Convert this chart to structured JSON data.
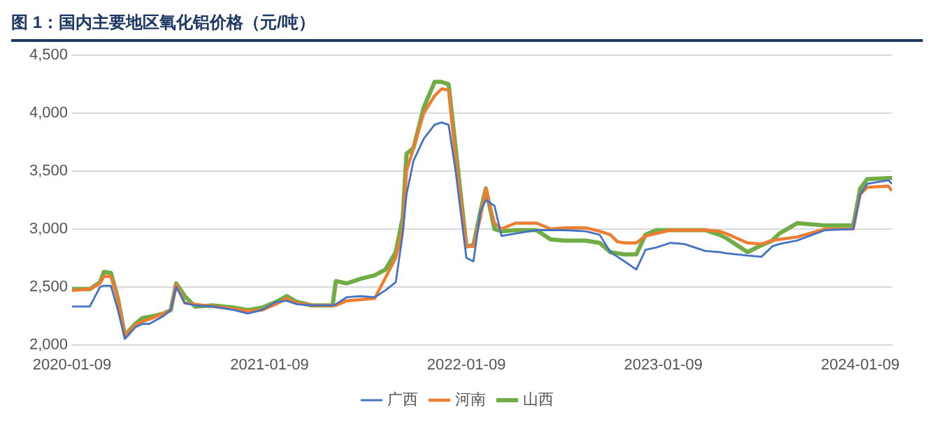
{
  "chart_data": {
    "type": "line",
    "title": "图 1：国内主要地区氧化铝价格（元/吨）",
    "x": [
      "2020-01-09",
      "2020-02-11",
      "2020-03-01",
      "2020-03-08",
      "2020-03-21",
      "2020-04-03",
      "2020-04-16",
      "2020-05-05",
      "2020-05-18",
      "2020-05-31",
      "2020-06-27",
      "2020-07-10",
      "2020-07-20",
      "2020-08-05",
      "2020-08-24",
      "2020-09-26",
      "2020-11-04",
      "2020-11-30",
      "2020-12-26",
      "2021-01-21",
      "2021-02-10",
      "2021-03-01",
      "2021-03-28",
      "2021-05-06",
      "2021-05-12",
      "2021-06-01",
      "2021-06-27",
      "2021-07-23",
      "2021-08-12",
      "2021-08-31",
      "2021-09-13",
      "2021-09-20",
      "2021-10-03",
      "2021-10-22",
      "2021-11-11",
      "2021-11-24",
      "2021-12-07",
      "2021-12-20",
      "2022-01-09",
      "2022-01-22",
      "2022-02-04",
      "2022-02-14",
      "2022-03-02",
      "2022-03-15",
      "2022-04-10",
      "2022-05-19",
      "2022-06-14",
      "2022-07-10",
      "2022-08-18",
      "2022-09-13",
      "2022-10-03",
      "2022-10-16",
      "2022-10-29",
      "2022-11-20",
      "2022-12-07",
      "2022-12-27",
      "2023-01-22",
      "2023-02-17",
      "2023-03-28",
      "2023-04-23",
      "2023-05-06",
      "2023-06-14",
      "2023-07-10",
      "2023-07-30",
      "2023-08-12",
      "2023-09-14",
      "2023-11-05",
      "2023-12-27",
      "2024-01-09",
      "2024-01-22",
      "2024-03-01",
      "2024-03-08"
    ],
    "series": [
      {
        "name": "广西",
        "color": "#4472c4",
        "values": [
          2330,
          2330,
          2500,
          2510,
          2510,
          2300,
          2050,
          2150,
          2180,
          2180,
          2250,
          2300,
          2500,
          2360,
          2340,
          2330,
          2300,
          2270,
          2300,
          2370,
          2380,
          2350,
          2340,
          2340,
          2350,
          2410,
          2420,
          2410,
          2470,
          2540,
          2960,
          3300,
          3590,
          3780,
          3900,
          3920,
          3900,
          3500,
          2750,
          2720,
          3150,
          3250,
          3200,
          2940,
          2960,
          2990,
          2990,
          2990,
          2980,
          2950,
          2800,
          2760,
          2720,
          2650,
          2820,
          2840,
          2880,
          2870,
          2810,
          2800,
          2790,
          2770,
          2760,
          2850,
          2870,
          2900,
          2990,
          3000,
          3300,
          3390,
          3420,
          3390
        ]
      },
      {
        "name": "河南",
        "color": "#ed7d31",
        "values": [
          2470,
          2480,
          2530,
          2590,
          2590,
          2400,
          2080,
          2170,
          2200,
          2220,
          2270,
          2300,
          2520,
          2360,
          2350,
          2330,
          2310,
          2290,
          2300,
          2350,
          2400,
          2360,
          2340,
          2340,
          2340,
          2380,
          2390,
          2400,
          2580,
          2750,
          3000,
          3500,
          3700,
          4000,
          4150,
          4210,
          4200,
          3600,
          2850,
          2850,
          3100,
          3350,
          3050,
          3000,
          3050,
          3050,
          3000,
          3010,
          3010,
          2980,
          2950,
          2890,
          2880,
          2880,
          2940,
          2960,
          2990,
          2990,
          2990,
          2980,
          2960,
          2880,
          2870,
          2900,
          2910,
          2930,
          3000,
          3000,
          3300,
          3360,
          3370,
          3330
        ]
      },
      {
        "name": "山西",
        "color": "#70ad47",
        "values": [
          2480,
          2480,
          2540,
          2630,
          2620,
          2400,
          2080,
          2180,
          2230,
          2240,
          2270,
          2300,
          2530,
          2420,
          2330,
          2340,
          2320,
          2300,
          2320,
          2370,
          2420,
          2370,
          2340,
          2340,
          2550,
          2530,
          2570,
          2600,
          2650,
          2800,
          3100,
          3650,
          3700,
          4050,
          4270,
          4270,
          4250,
          3700,
          2850,
          2860,
          3150,
          3350,
          3000,
          2980,
          2990,
          2990,
          2910,
          2900,
          2900,
          2880,
          2800,
          2790,
          2780,
          2780,
          2950,
          2990,
          2990,
          2990,
          2990,
          2950,
          2920,
          2800,
          2860,
          2900,
          2960,
          3050,
          3030,
          3030,
          3350,
          3430,
          3440,
          3440
        ]
      }
    ],
    "xlim": [
      "2020-01-09",
      "2024-03-08"
    ],
    "xticks": [
      "2020-01-09",
      "2021-01-09",
      "2022-01-09",
      "2023-01-09",
      "2024-01-09"
    ],
    "ylim": [
      2000,
      4500
    ],
    "yticks": [
      {
        "value": 2000,
        "label": "2,000"
      },
      {
        "value": 2500,
        "label": "2,500"
      },
      {
        "value": 3000,
        "label": "3,000"
      },
      {
        "value": 3500,
        "label": "3,500"
      },
      {
        "value": 4000,
        "label": "4,000"
      },
      {
        "value": 4500,
        "label": "4,500"
      }
    ],
    "grid": "y",
    "legend": "bottom",
    "marker": "none",
    "line_style": "solid"
  }
}
